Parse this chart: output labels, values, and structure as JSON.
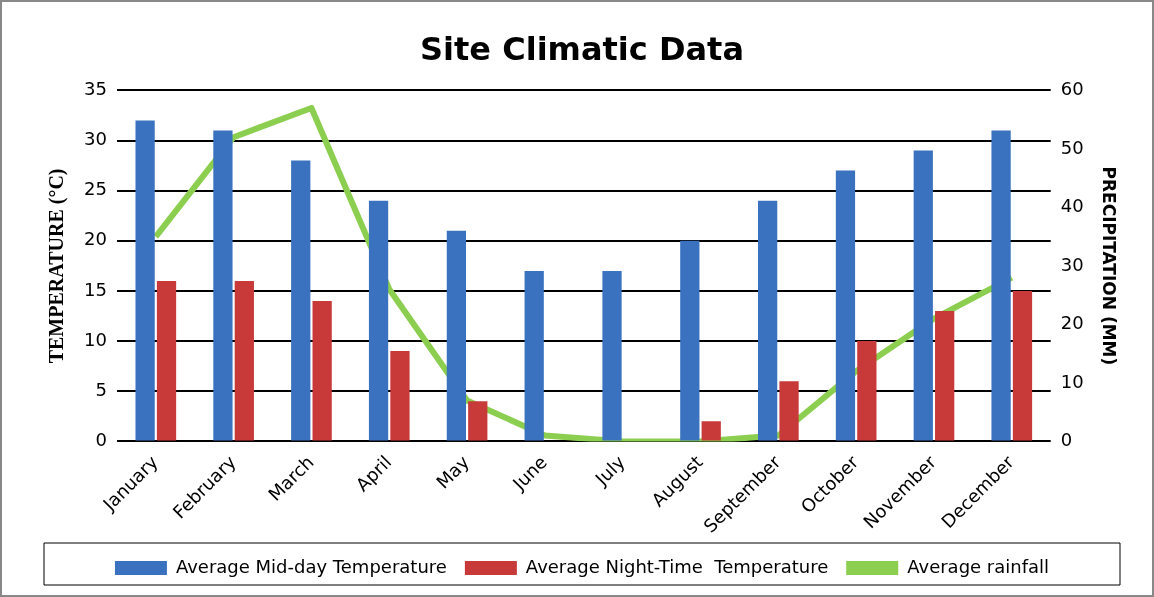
{
  "chart_data": {
    "type": "bar",
    "title": "Site Climatic Data",
    "ylabel": "TEMPERATURE (°C)",
    "y2label": "PRECIPITATION (MM)",
    "categories": [
      "January",
      "February",
      "March",
      "April",
      "May",
      "June",
      "July",
      "August",
      "September",
      "October",
      "November",
      "December"
    ],
    "series": [
      {
        "name": "Average Mid-day Temperature",
        "color": "#3a72c0",
        "values": [
          32,
          31,
          28,
          24,
          21,
          17,
          17,
          20,
          24,
          27,
          29,
          31
        ]
      },
      {
        "name": "Average Night-Time  Temperature",
        "color": "#c83a3a",
        "values": [
          16,
          16,
          14,
          9,
          4,
          0,
          0,
          2,
          6,
          10,
          13,
          15
        ]
      },
      {
        "name": "Average rainfall",
        "type": "line",
        "axis": "y2",
        "color": "#8cce4f",
        "values": [
          35,
          52,
          57,
          26,
          7,
          1,
          0,
          0,
          1,
          12,
          21,
          28
        ]
      }
    ],
    "ylim": [
      0,
      35
    ],
    "yticks": [
      0,
      5,
      10,
      15,
      20,
      25,
      30,
      35
    ],
    "y2lim": [
      0,
      60
    ],
    "y2ticks": [
      0,
      10,
      20,
      30,
      40,
      50,
      60
    ],
    "grid": "y",
    "legend": "bottom",
    "marker": "none"
  }
}
